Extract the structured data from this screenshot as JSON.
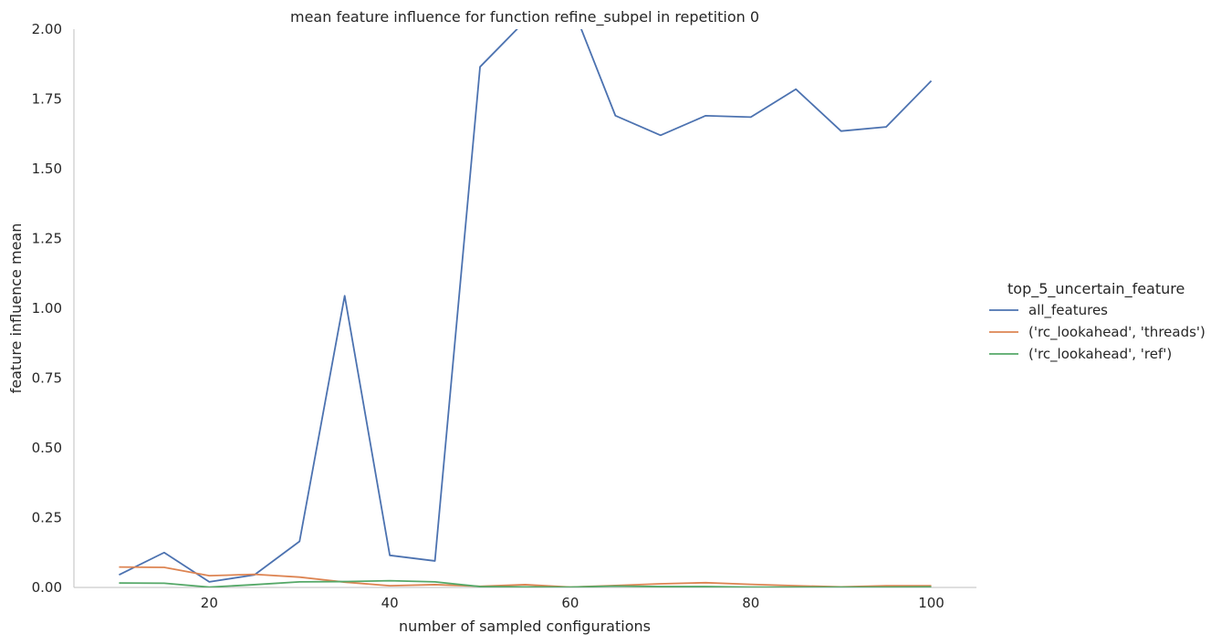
{
  "chart_data": {
    "type": "line",
    "title": "mean feature influence for function refine_subpel in repetition 0",
    "xlabel": "number of sampled configurations",
    "ylabel": "feature influence mean",
    "xlim": [
      5,
      105
    ],
    "ylim": [
      0,
      2
    ],
    "xticks": [
      20,
      40,
      60,
      80,
      100
    ],
    "yticks": [
      0.0,
      0.25,
      0.5,
      0.75,
      1.0,
      1.25,
      1.5,
      1.75,
      2.0
    ],
    "ytick_labels": [
      "0.00",
      "0.25",
      "0.50",
      "0.75",
      "1.00",
      "1.25",
      "1.50",
      "1.75",
      "2.00"
    ],
    "xtick_labels": [
      "20",
      "40",
      "60",
      "80",
      "100"
    ],
    "grid": false,
    "legend": {
      "title": "top_5_uncertain_feature",
      "placement": "right"
    },
    "x": [
      10,
      15,
      20,
      25,
      30,
      35,
      40,
      45,
      50,
      55,
      60,
      65,
      70,
      75,
      80,
      85,
      90,
      95,
      100
    ],
    "series": [
      {
        "name": "all_features",
        "color": "#4c72b0",
        "values": [
          0.045,
          0.125,
          0.02,
          0.045,
          0.165,
          1.045,
          0.115,
          0.095,
          1.865,
          2.03,
          2.1,
          1.69,
          1.62,
          1.69,
          1.685,
          1.785,
          1.635,
          1.65,
          1.815
        ]
      },
      {
        "name": "('rc_lookahead', 'threads')",
        "color": "#dd8452",
        "values": [
          0.073,
          0.072,
          0.042,
          0.047,
          0.037,
          0.019,
          0.006,
          0.01,
          0.004,
          0.01,
          0.001,
          0.007,
          0.013,
          0.017,
          0.011,
          0.006,
          0.002,
          0.006,
          0.006
        ]
      },
      {
        "name": "('rc_lookahead', 'ref')",
        "color": "#55a868",
        "values": [
          0.016,
          0.015,
          0.001,
          0.01,
          0.02,
          0.021,
          0.024,
          0.02,
          0.003,
          0.002,
          0.001,
          0.005,
          0.003,
          0.003,
          0.001,
          0.001,
          0.001,
          0.001,
          0.002
        ]
      }
    ]
  }
}
